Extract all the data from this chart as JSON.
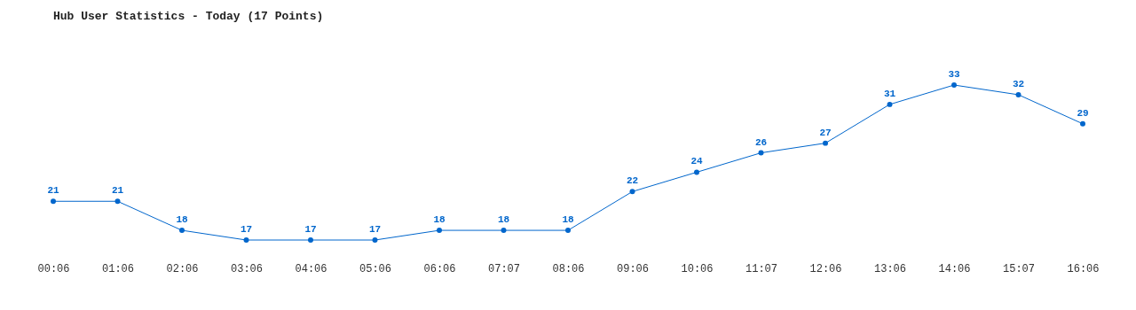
{
  "chart_data": {
    "type": "line",
    "title": "Hub User Statistics - Today (17 Points)",
    "categories": [
      "00:06",
      "01:06",
      "02:06",
      "03:06",
      "04:06",
      "05:06",
      "06:06",
      "07:07",
      "08:06",
      "09:06",
      "10:06",
      "11:07",
      "12:06",
      "13:06",
      "14:06",
      "15:07",
      "16:06"
    ],
    "series": [
      {
        "color": "#0066cc",
        "values": [
          21,
          21,
          18,
          17,
          17,
          17,
          18,
          18,
          18,
          22,
          24,
          26,
          27,
          31,
          33,
          32,
          29
        ]
      }
    ],
    "marker": "circle",
    "data_labels": true
  }
}
